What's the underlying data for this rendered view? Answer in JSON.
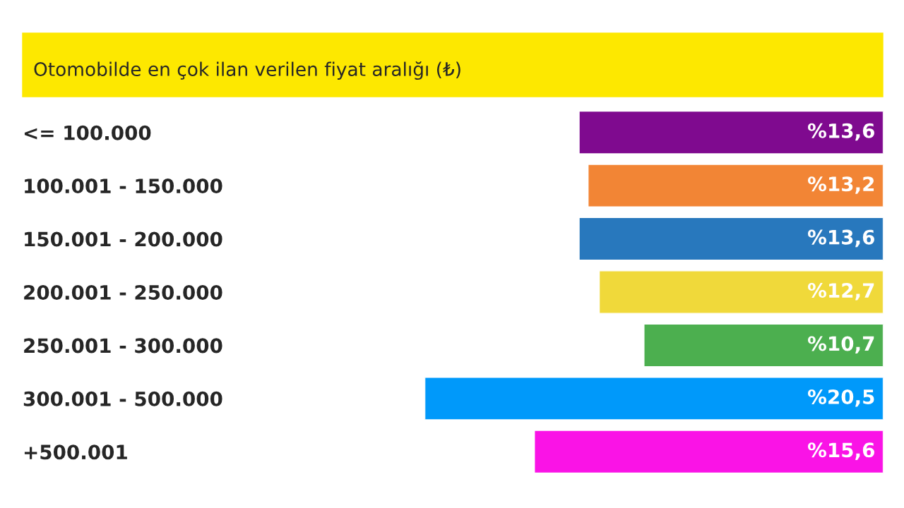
{
  "chart_data": {
    "type": "bar",
    "orientation": "horizontal",
    "title": "Otomobilde en çok ilan verilen fiyat aralığı (₺)",
    "categories": [
      "<= 100.000",
      "100.001 - 150.000",
      "150.001 - 200.000",
      "200.001 - 250.000",
      "250.001 - 300.000",
      "300.001 - 500.000",
      "+500.001"
    ],
    "values": [
      13.6,
      13.2,
      13.6,
      12.7,
      10.7,
      20.5,
      15.6
    ],
    "value_labels": [
      "%13,6",
      "%13,2",
      "%13,6",
      "%12,7",
      "%10,7",
      "%20,5",
      "%15,6"
    ],
    "colors": [
      "#7f0a8f",
      "#f28535",
      "#2878bd",
      "#f0d93a",
      "#4caf4f",
      "#0099fa",
      "#fa13e6"
    ],
    "tick_labels": "y",
    "grid": false,
    "legend": false
  }
}
